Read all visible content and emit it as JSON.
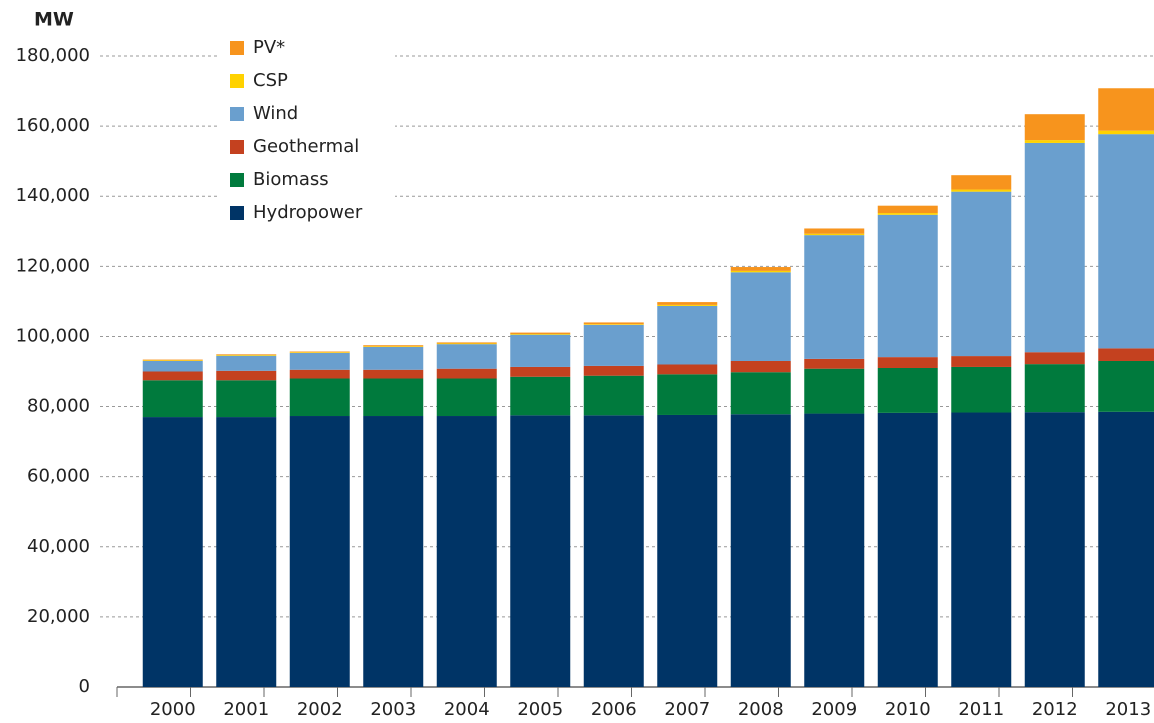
{
  "chart_data": {
    "type": "stacked-bar",
    "y_label": "MW",
    "categories": [
      "2000",
      "2001",
      "2002",
      "2003",
      "2004",
      "2005",
      "2006",
      "2007",
      "2008",
      "2009",
      "2010",
      "2011",
      "2012",
      "2013"
    ],
    "series": [
      {
        "name": "Hydropower",
        "color": "#003466",
        "values": [
          77000,
          77000,
          77300,
          77300,
          77300,
          77500,
          77500,
          77600,
          77800,
          78000,
          78200,
          78300,
          78400,
          78500
        ]
      },
      {
        "name": "Biomass",
        "color": "#007a3d",
        "values": [
          10500,
          10500,
          10700,
          10700,
          10700,
          11000,
          11300,
          11600,
          12000,
          12800,
          12800,
          13000,
          13700,
          14500
        ]
      },
      {
        "name": "Geothermal",
        "color": "#c4411f",
        "values": [
          2500,
          2700,
          2500,
          2500,
          2800,
          2800,
          2800,
          2800,
          3200,
          2800,
          3100,
          3100,
          3400,
          3600
        ]
      },
      {
        "name": "Wind",
        "color": "#6a9fce",
        "values": [
          3000,
          4300,
          4800,
          6500,
          7000,
          9200,
          11700,
          16700,
          25300,
          35300,
          40600,
          46900,
          59700,
          61100
        ]
      },
      {
        "name": "CSP",
        "color": "#ffd200",
        "values": [
          200,
          200,
          200,
          200,
          200,
          200,
          200,
          300,
          400,
          400,
          500,
          600,
          800,
          1000
        ]
      },
      {
        "name": "PV*",
        "color": "#f7941d",
        "values": [
          200,
          200,
          200,
          300,
          300,
          400,
          500,
          800,
          1100,
          1500,
          2100,
          4100,
          7400,
          12100
        ]
      }
    ],
    "ylim": [
      0,
      180000
    ],
    "yticks": [
      0,
      {
        "value": 20000,
        "label": "20,000"
      },
      {
        "value": 40000,
        "label": "40,000"
      },
      {
        "value": 60000,
        "label": "60,000"
      },
      {
        "value": 80000,
        "label": "80,000"
      },
      {
        "value": 100000,
        "label": "100,000"
      },
      {
        "value": 120000,
        "label": "120,000"
      },
      {
        "value": 140000,
        "label": "140,000"
      },
      {
        "value": 160000,
        "label": "160,000"
      },
      {
        "value": 180000,
        "label": "180,000"
      }
    ],
    "grid": true,
    "legend": "top-left"
  }
}
